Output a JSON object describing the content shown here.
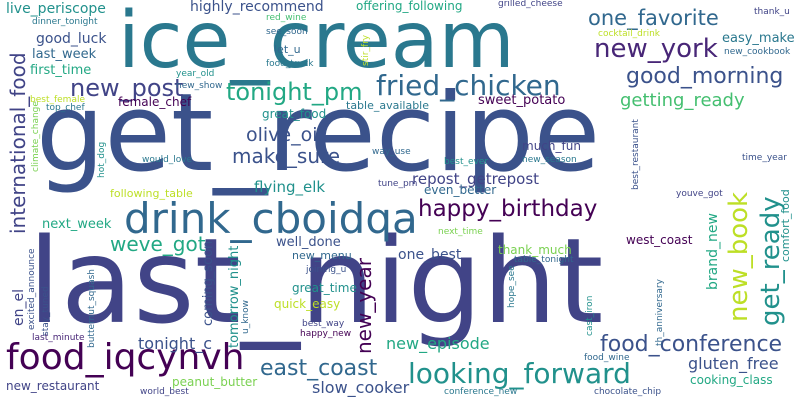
{
  "words": {
    "get_recipe": "get_recipe",
    "last_night": "last_night",
    "ice_cream": "ice_cream",
    "drink_cboidqa": "drink_cboidqa",
    "food_iqcynvh": "food_iqcynvh",
    "looking_forward": "looking_forward",
    "fried_chicken": "fried_chicken",
    "new_york": "new_york",
    "new_post": "new_post",
    "tonight_pm": "tonight_pm",
    "happy_birthday": "happy_birthday",
    "good_morning": "good_morning",
    "one_favorite": "one_favorite",
    "international_food": "international_food",
    "new_book": "new_book",
    "get_ready": "get_ready",
    "food_conference": "food_conference",
    "east_coast": "east_coast",
    "new_year": "new_year",
    "make_sure": "make_sure",
    "weve_got": "weve_got",
    "olive_oil": "olive_oil",
    "getting_ready": "getting_ready",
    "repost_getrepost": "repost_getrepost",
    "new_episode": "new_episode",
    "tonight_c": "tonight_c",
    "gluten_free": "gluten_free",
    "slow_cooker": "slow_cooker",
    "new_restaurant": "new_restaurant",
    "peanut_butter": "peanut_butter",
    "cooking_class": "cooking_class",
    "highly_recommend": "highly_recommend",
    "offering_following": "offering_following",
    "live_periscope": "live_periscope",
    "good_luck": "good_luck",
    "last_week": "last_week",
    "first_time": "first_time",
    "easy_make": "easy_make",
    "new_cookbook": "new_cookbook",
    "female_chef": "female_chef",
    "sweet_potato": "sweet_potato",
    "great_food": "great_food",
    "table_available": "table_available",
    "much_fun": "much_fun",
    "even_better": "even_better",
    "following_table": "following_table",
    "flying_elk": "flying_elk",
    "next_week": "next_week",
    "well_done": "well_done",
    "one_best": "one_best",
    "west_coast": "west_coast",
    "thank_much": "thank_much",
    "brand_new": "brand_new",
    "great_time": "great_time",
    "quick_easy": "quick_easy",
    "new_menu": "new_menu",
    "coming_soon": "coming_soon",
    "tomorrow_night": "tomorrow_night",
    "en_el": "en_el",
    "stay_tuned": "stay_tuned",
    "thank_u": "thank_u",
    "dinner_tonight": "dinner_tonight",
    "grilled_cheese": "grilled_cheese",
    "red_wine": "red_wine",
    "see_soon": "see_soon",
    "cocktail_drink": "cocktail_drink",
    "let_u": "let_u",
    "food_truck": "food_truck",
    "stir_fry": "stir_fry",
    "year_old": "year_old",
    "new_show": "new_show",
    "best_female": "best_female",
    "top_chef": "top_chef",
    "best_restaurant": "best_restaurant",
    "climate_change": "climate_change",
    "hot_dog": "hot_dog",
    "would_love": "would_love",
    "way_use": "way_use",
    "best_ever": "best_ever",
    "new_season": "new_season",
    "time_year": "time_year",
    "tune_pm": "tune_pm",
    "youve_got": "youve_got",
    "comfort_food": "comfort_food",
    "next_time": "next_time",
    "joining_u": "joining_u",
    "table_tonight": "table_tonight",
    "hope_see": "hope_see",
    "cast_iron": "cast_iron",
    "th_anniversary": "th_anniversary",
    "excited_announce": "excited_announce",
    "butternut_squash": "butternut_squash",
    "u_know": "u_know",
    "best_way": "best_way",
    "happy_new": "happy_new",
    "last_minute": "last_minute",
    "food_wine": "food_wine",
    "world_best": "world_best",
    "conference_new": "conference_new",
    "chocolate_chip": "chocolate_chip"
  },
  "colors": {
    "navy": "#3b528b",
    "indigo": "#414487",
    "purple": "#482677",
    "dark": "#440154",
    "blue": "#31688e",
    "steel": "#2a788e",
    "teal": "#21918c",
    "sea": "#22a884",
    "green": "#44bf70",
    "lime": "#7ad151",
    "yellow": "#bddf26",
    "gold": "#fde725"
  }
}
